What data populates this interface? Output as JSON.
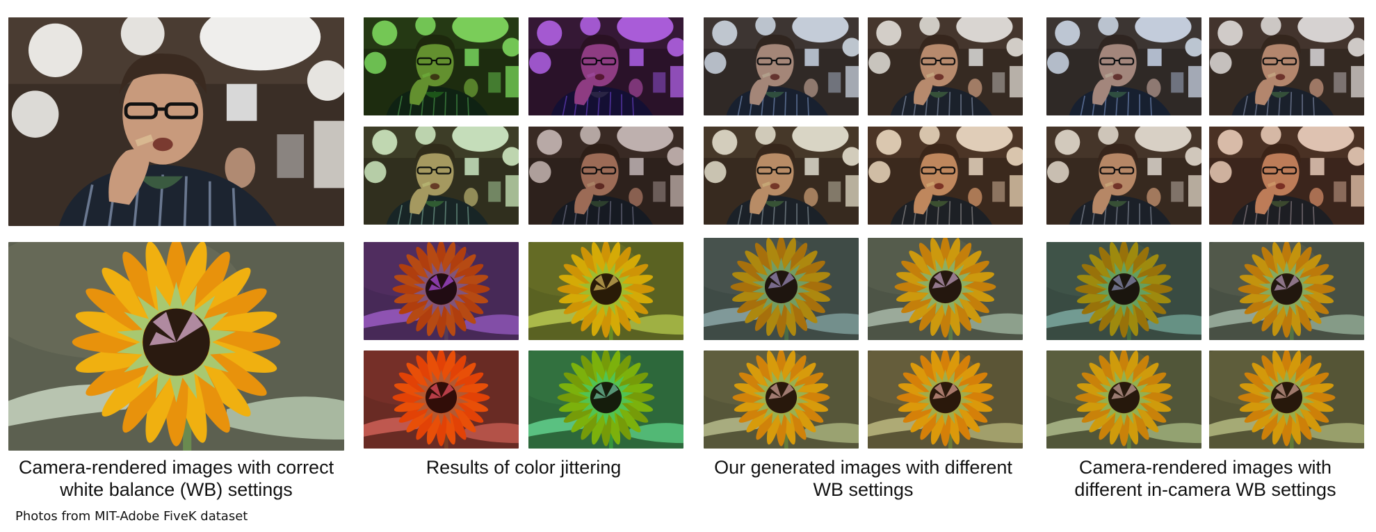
{
  "captions": {
    "col1": {
      "line1": "Camera-rendered images with correct",
      "line2": "white balance (WB) settings"
    },
    "col2": {
      "line1": "Results of color jittering",
      "line2": ""
    },
    "col3": {
      "line1": "Our generated images with different",
      "line2": "WB settings"
    },
    "col4": {
      "line1": "Camera-rendered images with",
      "line2": "different in-camera WB settings"
    }
  },
  "credit": "Photos from MIT-Adobe FiveK dataset",
  "tiles": {
    "correct_man": {
      "subject": "man",
      "tint": "#9a8470",
      "strength": 0.0
    },
    "correct_flower": {
      "subject": "flower",
      "tint": "#7d8a70",
      "strength": 0.0
    },
    "jitter_man_1": {
      "subject": "man",
      "tint": "#3fb01a",
      "strength": 0.55
    },
    "jitter_man_2": {
      "subject": "man",
      "tint": "#7a1ec8",
      "strength": 0.55
    },
    "jitter_man_3": {
      "subject": "man",
      "tint": "#7fc06a",
      "strength": 0.35
    },
    "jitter_man_4": {
      "subject": "man",
      "tint": "#5a3a3a",
      "strength": 0.3
    },
    "jitter_flower_1": {
      "subject": "flower",
      "tint": "#8a2ad0",
      "strength": 0.55
    },
    "jitter_flower_2": {
      "subject": "flower",
      "tint": "#b8c21a",
      "strength": 0.5
    },
    "jitter_flower_3": {
      "subject": "flower",
      "tint": "#e01010",
      "strength": 0.45
    },
    "jitter_flower_4": {
      "subject": "flower",
      "tint": "#20d070",
      "strength": 0.45
    },
    "ours_man_1": {
      "subject": "man",
      "tint": "#6e88b0",
      "strength": 0.3
    },
    "ours_man_2": {
      "subject": "man",
      "tint": "#8a7a70",
      "strength": 0.2
    },
    "ours_man_3": {
      "subject": "man",
      "tint": "#a09060",
      "strength": 0.25
    },
    "ours_man_4": {
      "subject": "man",
      "tint": "#c08a50",
      "strength": 0.3
    },
    "ours_flower_1": {
      "subject": "flower",
      "tint": "#4a6a90",
      "strength": 0.35
    },
    "ours_flower_2": {
      "subject": "flower",
      "tint": "#6a7a80",
      "strength": 0.25
    },
    "ours_flower_3": {
      "subject": "flower",
      "tint": "#a09040",
      "strength": 0.3
    },
    "ours_flower_4": {
      "subject": "flower",
      "tint": "#b89040",
      "strength": 0.35
    },
    "cam_man_1": {
      "subject": "man",
      "tint": "#6a88b8",
      "strength": 0.3
    },
    "cam_man_2": {
      "subject": "man",
      "tint": "#7a6a70",
      "strength": 0.2
    },
    "cam_man_3": {
      "subject": "man",
      "tint": "#9a8060",
      "strength": 0.25
    },
    "cam_man_4": {
      "subject": "man",
      "tint": "#b86a40",
      "strength": 0.3
    },
    "cam_flower_1": {
      "subject": "flower",
      "tint": "#2a7080",
      "strength": 0.35
    },
    "cam_flower_2": {
      "subject": "flower",
      "tint": "#506a70",
      "strength": 0.25
    },
    "cam_flower_3": {
      "subject": "flower",
      "tint": "#8a9040",
      "strength": 0.3
    },
    "cam_flower_4": {
      "subject": "flower",
      "tint": "#a09040",
      "strength": 0.35
    }
  }
}
